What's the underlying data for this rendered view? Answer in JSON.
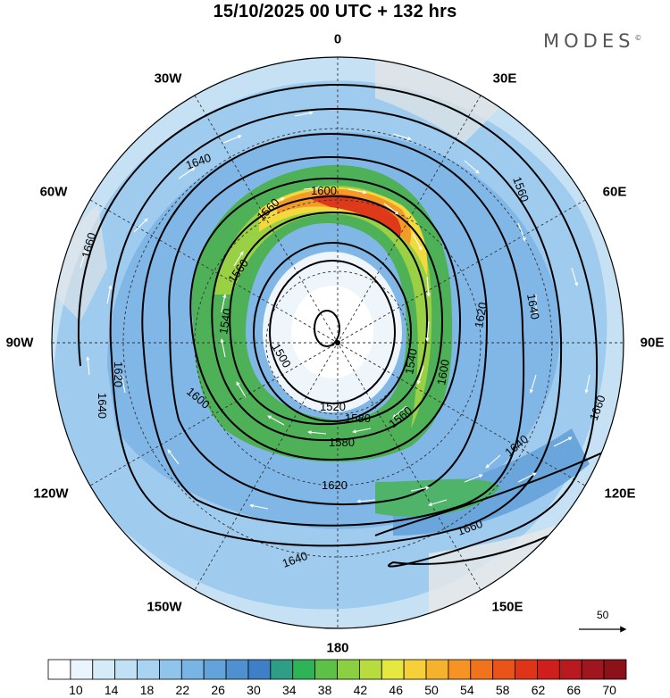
{
  "title": "15/10/2025  00 UTC  + 132 hrs",
  "logo": "MODES",
  "logo_mark": "©",
  "longitude_labels": {
    "n": "0",
    "nne": "30E",
    "ene": "60E",
    "e": "90E",
    "ese": "120E",
    "sse": "150E",
    "s": "180",
    "ssw": "150W",
    "wsw": "120W",
    "w": "90W",
    "wnw": "60W",
    "nnw": "30W"
  },
  "reference_vector": "50",
  "contour_labels": {
    "c1600": "1600",
    "c1560a": "1560",
    "c1560b": "1560",
    "c1540a": "1540",
    "c1540b": "1540",
    "c1500": "1500",
    "c1520": "1520",
    "c1580a": "1580",
    "c1580b": "1580",
    "c1560c": "1560",
    "c1600b": "1600",
    "c1600c": "1600",
    "c1620a": "1620",
    "c1620b": "1620",
    "c1620c": "1620",
    "c1640a": "1640",
    "c1640b": "1640",
    "c1640c": "1640",
    "c1640d": "1640",
    "c1640e": "1640",
    "c1660a": "1660",
    "c1660b": "1660",
    "c1660c": "1660",
    "c1560d": "1560"
  },
  "colorbar": {
    "labels": [
      "10",
      "14",
      "18",
      "22",
      "26",
      "30",
      "34",
      "38",
      "42",
      "46",
      "50",
      "54",
      "58",
      "62",
      "66",
      "70"
    ],
    "colors": [
      "#ffffff",
      "#eaf4fc",
      "#d6ebf8",
      "#c0e0f5",
      "#a8d3f1",
      "#8fc4eb",
      "#78b5e4",
      "#63a3dc",
      "#4f90d1",
      "#3e7fc6",
      "#2f9e86",
      "#2fb357",
      "#5cc146",
      "#8ccf42",
      "#b8dc3e",
      "#e6e840",
      "#f6d038",
      "#f7b22d",
      "#f59424",
      "#f1741c",
      "#ea5418",
      "#df3417",
      "#cf1f1c",
      "#b81a1f",
      "#a0161f",
      "#8c1219"
    ]
  }
}
